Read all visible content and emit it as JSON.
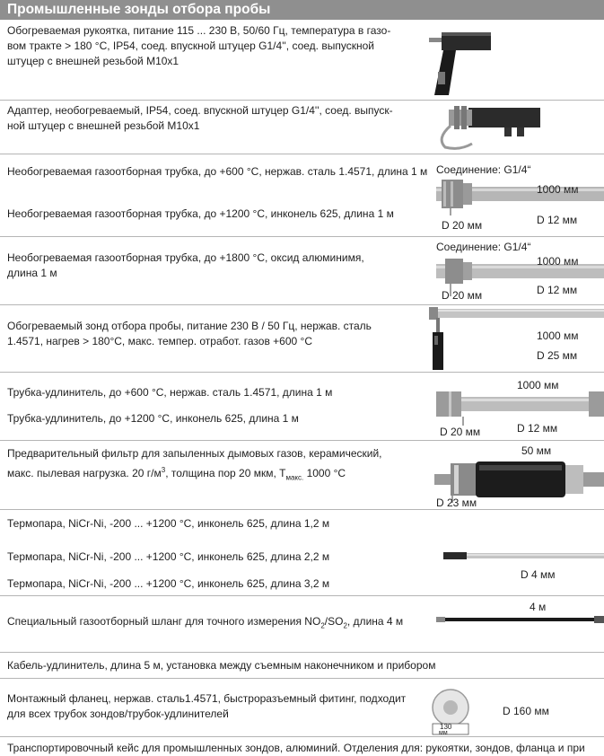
{
  "header": {
    "title": "Промышленные зонды отбора пробы"
  },
  "items": [
    {
      "lines": [
        "Обогреваемая рукоятка, питание 115 ... 230 В, 50/60 Гц, температура в газо-",
        "вом тракте > 180 °C, IP54, соед. впускной штуцер G1/4'', соед. выпускной",
        "штуцер с внешней резьбой M10x1"
      ]
    },
    {
      "lines": [
        "Адаптер, необогреваемый, IP54, соед. впускной штуцер G1/4'', соед. выпуск-",
        "ной штуцер с внешней резьбой M10x1"
      ]
    },
    {
      "line": "Необогреваемая газоотборная трубка, до +600 °C, нержав. сталь 1.4571, длина 1 м",
      "line2": "Необогреваемая газоотборная трубка, до +1200 °C, инконель 625, длина 1 м",
      "labels": {
        "connection": "Соединение: G1/4“",
        "length": "1000 мм",
        "d_outer": "D 20 мм",
        "d_inner": "D 12 мм"
      }
    },
    {
      "lines": [
        "Необогреваемая газоотборная трубка, до +1800 °C, оксид алюминимя,",
        "длина 1 м"
      ],
      "labels": {
        "connection": "Соединение: G1/4“",
        "length": "1000 мм",
        "d_outer": "D 20 мм",
        "d_inner": "D 12 мм"
      }
    },
    {
      "lines": [
        "Обогреваемый зонд отбора пробы, питание 230 В / 50 Гц, нержав. сталь",
        "1.4571, нагрев > 180°C, макс. темпер. отработ. газов +600 °C"
      ],
      "labels": {
        "length": "1000 мм",
        "d": "D 25 мм"
      }
    },
    {
      "line": "Трубка-удлинитель, до +600 °C, нержав. сталь 1.4571, длина 1 м",
      "line2": "Трубка-удлинитель, до +1200 °C, инконель 625, длина 1 м",
      "labels": {
        "length": "1000 мм",
        "d_outer": "D 20 мм",
        "d_inner": "D 12 мм"
      }
    },
    {
      "line": "Предварительный фильтр для запыленных дымовых газов, керамический,",
      "line2_pre": "макс. пылевая нагрузка. 20 г/м",
      "line2_sup": "3",
      "line2_mid": ", толщина пор 20 мкм, T",
      "line2_sub": "макс.",
      "line2_post": " 1000 °C",
      "labels": {
        "length": "50 мм",
        "d": "D 23 мм"
      }
    },
    {
      "line": "Термопара, NiCr-Ni, -200 ... +1200 °C, инконель 625, длина 1,2 м",
      "line2": "Термопара, NiCr-Ni, -200 ... +1200 °C, инконель 625, длина 2,2 м",
      "line3": "Термопара, NiCr-Ni, -200 ... +1200 °C, инконель 625, длина 3,2 м",
      "labels": {
        "d": "D 4 мм"
      }
    },
    {
      "pre": "Специальный газоотборный шланг для точного измерения NO",
      "sub1": "2",
      "mid": "/SO",
      "sub2": "2",
      "post": ", длина 4 м",
      "labels": {
        "length": "4 м"
      }
    },
    {
      "line": "Кабель-удлинитель, длина 5 м, установка между съемным наконечником и прибором"
    },
    {
      "lines": [
        "Монтажный фланец, нержав. сталь1.4571, быстроразъемный фитинг, подходит",
        "для всех трубок зондов/трубок-удлинителей"
      ],
      "labels": {
        "d": "D 160 мм",
        "size": "130",
        "unit": "мм"
      }
    },
    {
      "line": "Транспортировочный кейс для промышленных зондов, алюминий. Отделения для: рукоятки, зондов, фланца и при"
    }
  ],
  "colors": {
    "header_bg": "#8f8f8f",
    "separator": "#b5b5b5",
    "text": "#1e1e1e"
  }
}
